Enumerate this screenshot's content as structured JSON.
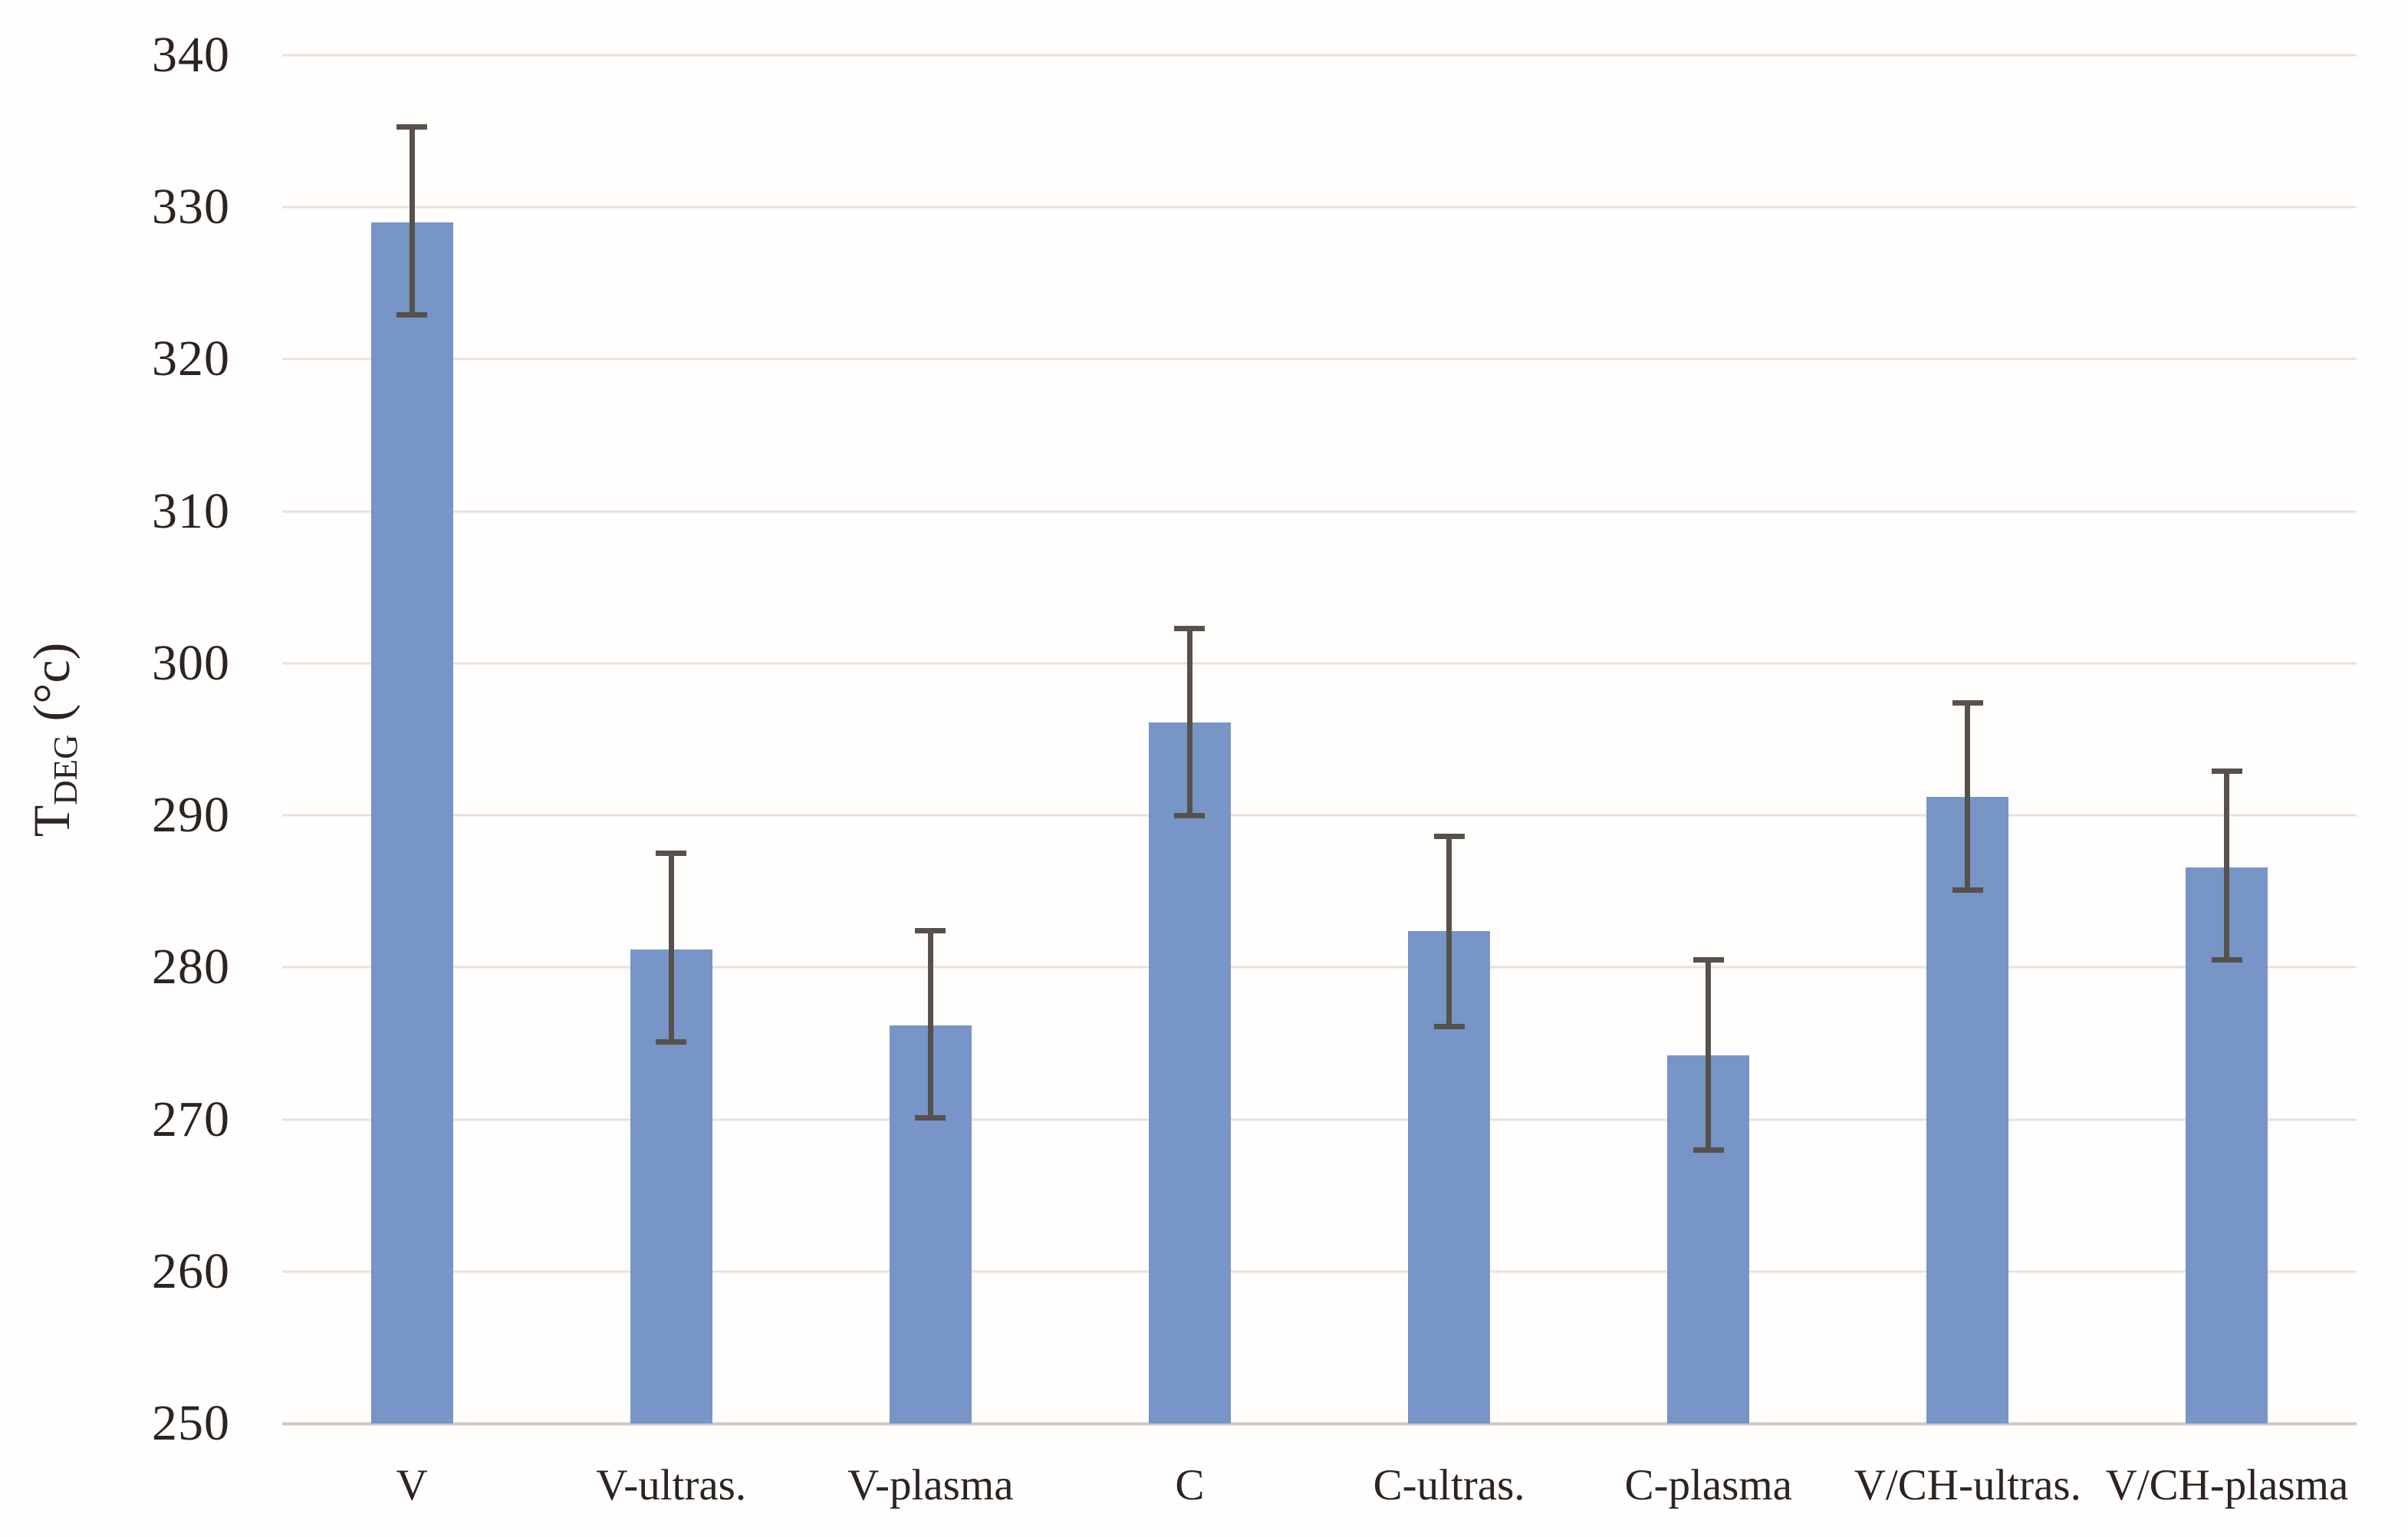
{
  "chart_data": {
    "type": "bar",
    "title": "",
    "xlabel": "",
    "ylabel": "T DEG (°c)",
    "ylabel_parts": {
      "base": "T",
      "subscript": "DEG",
      "suffix": " (°c)"
    },
    "ylim": [
      250,
      340
    ],
    "ytick_step": 10,
    "yticks": [
      250,
      260,
      270,
      280,
      290,
      300,
      310,
      320,
      330,
      340
    ],
    "grid": true,
    "legend_position": "none",
    "categories": [
      "V",
      "V-ultras.",
      "V-plasma",
      "C",
      "C-ultras.",
      "C-plasma",
      "V/CH-ultras.",
      "V/CH-plasma"
    ],
    "series": [
      {
        "name": "TDEG",
        "values": [
          329.0,
          281.2,
          276.2,
          296.1,
          282.4,
          274.2,
          291.2,
          286.6
        ],
        "error_upper": [
          335.3,
          287.5,
          282.4,
          302.3,
          288.6,
          280.5,
          297.4,
          292.9
        ],
        "error_lower": [
          322.9,
          275.1,
          270.1,
          290.0,
          276.1,
          268.0,
          285.1,
          280.5
        ]
      }
    ],
    "colors": {
      "bar_fill": "#7795c6",
      "error_bar": "#56514b",
      "gridline": "#e9e1de",
      "axis_line": "#cfc6c2",
      "text": "#2a2522",
      "background": "#fffefc"
    }
  }
}
